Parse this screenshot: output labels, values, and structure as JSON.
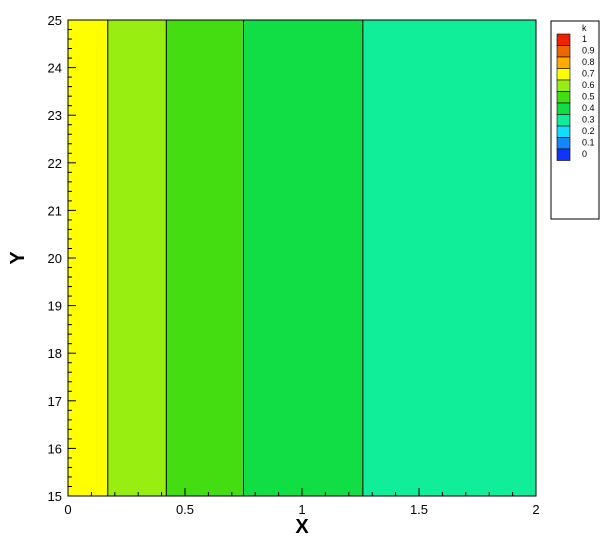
{
  "chart_data": {
    "type": "heatmap",
    "xlabel": "X",
    "ylabel": "Y",
    "xlim": [
      0,
      2
    ],
    "ylim": [
      15,
      25
    ],
    "x_ticks": [
      0,
      0.5,
      1,
      1.5,
      2
    ],
    "x_tick_labels": [
      "0",
      "0.5",
      "1",
      "1.5",
      "2"
    ],
    "y_ticks": [
      15,
      16,
      17,
      18,
      19,
      20,
      21,
      22,
      23,
      24,
      25
    ],
    "y_tick_labels": [
      "15",
      "16",
      "17",
      "18",
      "19",
      "20",
      "21",
      "22",
      "23",
      "24",
      "25"
    ],
    "bands": [
      {
        "x_start": 0,
        "x_end": 0.17,
        "level": 0.7,
        "color": "#ffff00"
      },
      {
        "x_start": 0.17,
        "x_end": 0.42,
        "level": 0.6,
        "color": "#99ee11"
      },
      {
        "x_start": 0.42,
        "x_end": 0.75,
        "level": 0.5,
        "color": "#44dd11"
      },
      {
        "x_start": 0.75,
        "x_end": 1.26,
        "level": 0.4,
        "color": "#11dd44"
      },
      {
        "x_start": 1.26,
        "x_end": 2.0,
        "level": 0.3,
        "color": "#11ee99"
      }
    ],
    "legend": {
      "title": "k",
      "placement": "top-right",
      "entries": [
        {
          "label": "1",
          "color": "#ee2200"
        },
        {
          "label": "0.9",
          "color": "#ee6600"
        },
        {
          "label": "0.8",
          "color": "#ffaa00"
        },
        {
          "label": "0.7",
          "color": "#ffff00"
        },
        {
          "label": "0.6",
          "color": "#99ee11"
        },
        {
          "label": "0.5",
          "color": "#44dd11"
        },
        {
          "label": "0.4",
          "color": "#11dd44"
        },
        {
          "label": "0.3",
          "color": "#11ee99"
        },
        {
          "label": "0.2",
          "color": "#11ddff"
        },
        {
          "label": "0.1",
          "color": "#1188ff"
        },
        {
          "label": "0",
          "color": "#1133ff"
        }
      ]
    }
  }
}
